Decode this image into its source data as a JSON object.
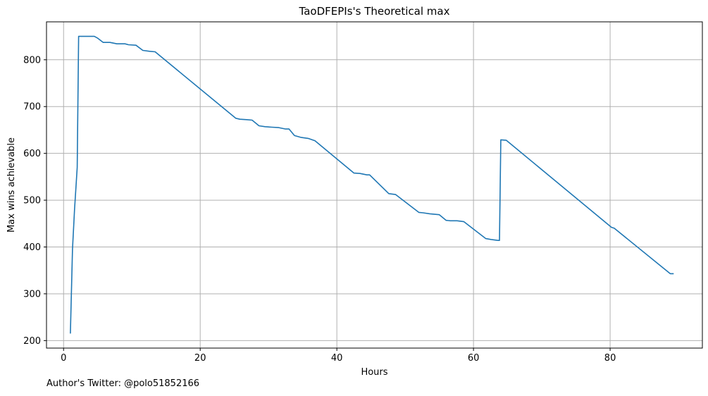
{
  "chart_data": {
    "type": "line",
    "title": "TaoDFEPIs's Theoretical max",
    "xlabel": "Hours",
    "ylabel": "Max wins achievable",
    "xlim": [
      -2.5,
      93.5
    ],
    "ylim": [
      184,
      881
    ],
    "xticks": [
      0,
      20,
      40,
      60,
      80
    ],
    "yticks": [
      200,
      300,
      400,
      500,
      600,
      700,
      800
    ],
    "grid": true,
    "legend": "none",
    "series": [
      {
        "color": "#1f77b4",
        "x": [
          1.0,
          1.3,
          1.6,
          2.0,
          2.2,
          2.4,
          3.0,
          4.5,
          5.0,
          5.8,
          6.8,
          7.8,
          9.0,
          9.5,
          10.6,
          11.6,
          12.6,
          13.4,
          25.2,
          25.8,
          26.8,
          27.6,
          28.6,
          29.5,
          30.5,
          31.5,
          32.5,
          33.0,
          33.8,
          34.8,
          35.8,
          36.8,
          42.5,
          43.4,
          44.4,
          44.8,
          47.6,
          48.6,
          52.0,
          52.6,
          53.6,
          55.0,
          56.0,
          56.6,
          57.6,
          58.6,
          61.8,
          62.6,
          63.6,
          63.8,
          64.0,
          64.8,
          80.2,
          80.6,
          88.8,
          89.3
        ],
        "y": [
          215,
          395,
          480,
          570,
          850,
          850,
          850,
          850,
          846,
          837,
          837,
          834,
          834,
          832,
          831,
          820,
          818,
          817,
          675,
          673,
          672,
          671,
          659,
          657,
          656,
          655,
          652,
          652,
          638,
          634,
          632,
          627,
          558,
          557,
          554,
          554,
          514,
          512,
          474,
          473,
          471,
          469,
          457,
          456,
          456,
          454,
          418,
          416,
          414,
          414,
          629,
          628,
          442,
          440,
          343,
          343
        ]
      }
    ]
  },
  "footer_text": "Author's Twitter: @polo51852166"
}
